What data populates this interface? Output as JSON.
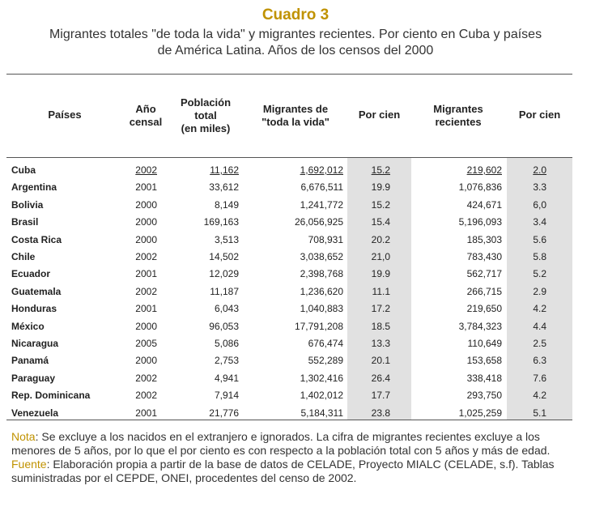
{
  "title": "Cuadro 3",
  "subtitle_line1": "Migrantes totales \"de toda la vida\" y migrantes recientes. Por ciento en Cuba y países",
  "subtitle_line2": "de América Latina. Años de los censos del 2000",
  "headers": {
    "paises": "Países",
    "anio": "Año\ncensal",
    "poblacion": "Población\ntotal\n(en miles)",
    "migrantes_vida": "Migrantes de\n\"toda la vida\"",
    "por_cien_1": "Por cien",
    "migrantes_recientes": "Migrantes\nrecientes",
    "por_cien_2": "Por cien"
  },
  "rows": [
    {
      "pais": "Cuba",
      "anio": "2002",
      "poblacion": "11,162",
      "mig_vida": "1,692,012",
      "pc1": "15.2",
      "mig_rec": "219,602",
      "pc2": "2.0"
    },
    {
      "pais": "Argentina",
      "anio": "2001",
      "poblacion": "33,612",
      "mig_vida": "6,676,511",
      "pc1": "19.9",
      "mig_rec": "1,076,836",
      "pc2": "3.3"
    },
    {
      "pais": "Bolivia",
      "anio": "2000",
      "poblacion": "8,149",
      "mig_vida": "1,241,772",
      "pc1": "15.2",
      "mig_rec": "424,671",
      "pc2": "6,0"
    },
    {
      "pais": "Brasil",
      "anio": "2000",
      "poblacion": "169,163",
      "mig_vida": "26,056,925",
      "pc1": "15.4",
      "mig_rec": "5,196,093",
      "pc2": "3.4"
    },
    {
      "pais": "Costa Rica",
      "anio": "2000",
      "poblacion": "3,513",
      "mig_vida": "708,931",
      "pc1": "20.2",
      "mig_rec": "185,303",
      "pc2": "5.6"
    },
    {
      "pais": "Chile",
      "anio": "2002",
      "poblacion": "14,502",
      "mig_vida": "3,038,652",
      "pc1": "21,0",
      "mig_rec": "783,430",
      "pc2": "5.8"
    },
    {
      "pais": "Ecuador",
      "anio": "2001",
      "poblacion": "12,029",
      "mig_vida": "2,398,768",
      "pc1": "19.9",
      "mig_rec": "562,717",
      "pc2": "5.2"
    },
    {
      "pais": "Guatemala",
      "anio": "2002",
      "poblacion": "11,187",
      "mig_vida": "1,236,620",
      "pc1": "11.1",
      "mig_rec": "266,715",
      "pc2": "2.9"
    },
    {
      "pais": "Honduras",
      "anio": "2001",
      "poblacion": "6,043",
      "mig_vida": "1,040,883",
      "pc1": "17.2",
      "mig_rec": "219,650",
      "pc2": "4.2"
    },
    {
      "pais": "México",
      "anio": "2000",
      "poblacion": "96,053",
      "mig_vida": "17,791,208",
      "pc1": "18.5",
      "mig_rec": "3,784,323",
      "pc2": "4.4"
    },
    {
      "pais": "Nicaragua",
      "anio": "2005",
      "poblacion": "5,086",
      "mig_vida": "676,474",
      "pc1": "13.3",
      "mig_rec": "110,649",
      "pc2": "2.5"
    },
    {
      "pais": "Panamá",
      "anio": "2000",
      "poblacion": "2,753",
      "mig_vida": "552,289",
      "pc1": "20.1",
      "mig_rec": "153,658",
      "pc2": "6.3"
    },
    {
      "pais": "Paraguay",
      "anio": "2002",
      "poblacion": "4,941",
      "mig_vida": "1,302,416",
      "pc1": "26.4",
      "mig_rec": "338,418",
      "pc2": "7.6"
    },
    {
      "pais": "Rep. Dominicana",
      "anio": "2002",
      "poblacion": "7,914",
      "mig_vida": "1,402,012",
      "pc1": "17.7",
      "mig_rec": "293,750",
      "pc2": "4.2"
    },
    {
      "pais": "Venezuela",
      "anio": "2001",
      "poblacion": "21,776",
      "mig_vida": "5,184,311",
      "pc1": "23.8",
      "mig_rec": "1,025,259",
      "pc2": "5.1"
    }
  ],
  "note": {
    "label": "Nota",
    "text": ": Se excluye a los nacidos en el extranjero e ignorados.  La cifra de migrantes recientes excluye a los menores  de 5 años, por lo que el por ciento es con respecto a la población total con 5 años y más de edad."
  },
  "source": {
    "label": "Fuente",
    "text": ": Elaboración propia a partir de la base de datos de CELADE, Proyecto MIALC (CELADE, s.f). Tablas suministradas por el CEPDE, ONEI, procedentes del censo de 2002."
  },
  "colors": {
    "accent": "#c09200",
    "shade": "#e1e1e1",
    "rule": "#555555"
  }
}
